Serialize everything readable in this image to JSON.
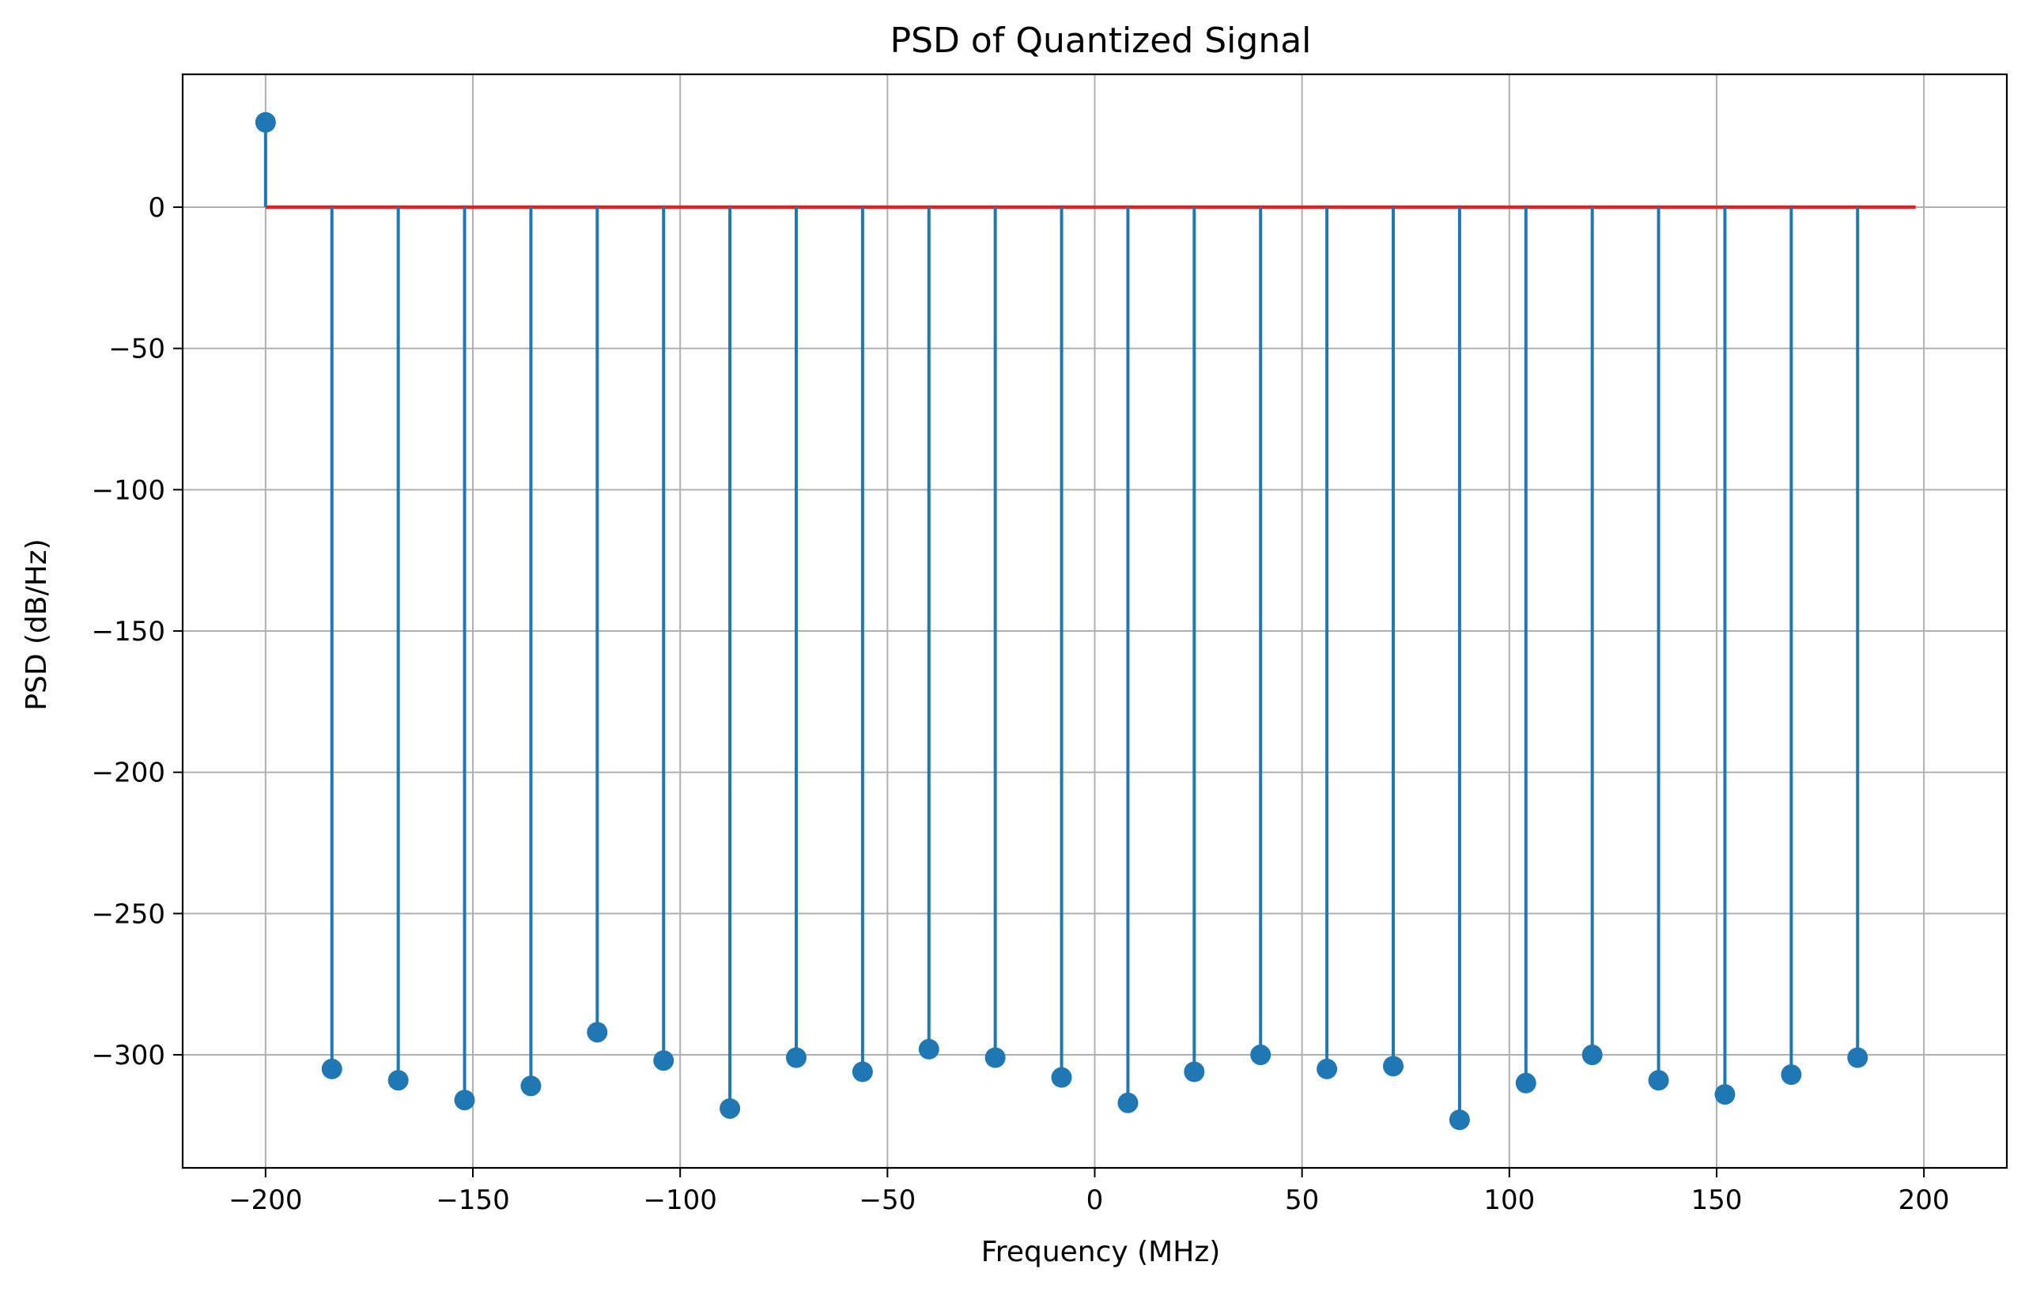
{
  "chart_data": {
    "type": "stem",
    "title": "PSD of Quantized Signal",
    "xlabel": "Frequency (MHz)",
    "ylabel": "PSD (dB/Hz)",
    "xlim": [
      -220,
      220
    ],
    "ylim": [
      -340,
      47
    ],
    "xticks": [
      -200,
      -150,
      -100,
      -50,
      0,
      50,
      100,
      150,
      200
    ],
    "xtick_labels": [
      "−200",
      "−150",
      "−100",
      "−50",
      "0",
      "50",
      "100",
      "150",
      "200"
    ],
    "yticks": [
      0,
      -50,
      -100,
      -150,
      -200,
      -250,
      -300
    ],
    "ytick_labels": [
      "0",
      "−50",
      "−100",
      "−150",
      "−200",
      "−250",
      "−300"
    ],
    "grid": true,
    "baseline": {
      "y": 0,
      "x_range": [
        -200,
        198
      ],
      "color": "#d62728"
    },
    "stem_color": "#1f77b4",
    "x": [
      -200,
      -184,
      -168,
      -152,
      -136,
      -120,
      -104,
      -88,
      -72,
      -56,
      -40,
      -24,
      -8,
      8,
      24,
      40,
      56,
      72,
      88,
      104,
      120,
      136,
      152,
      168,
      184
    ],
    "y": [
      30,
      -305,
      -309,
      -316,
      -311,
      -292,
      -302,
      -319,
      -301,
      -306,
      -298,
      -301,
      -308,
      -317,
      -306,
      -300,
      -305,
      -304,
      -323,
      -310,
      -300,
      -309,
      -314,
      -307,
      -301
    ]
  }
}
